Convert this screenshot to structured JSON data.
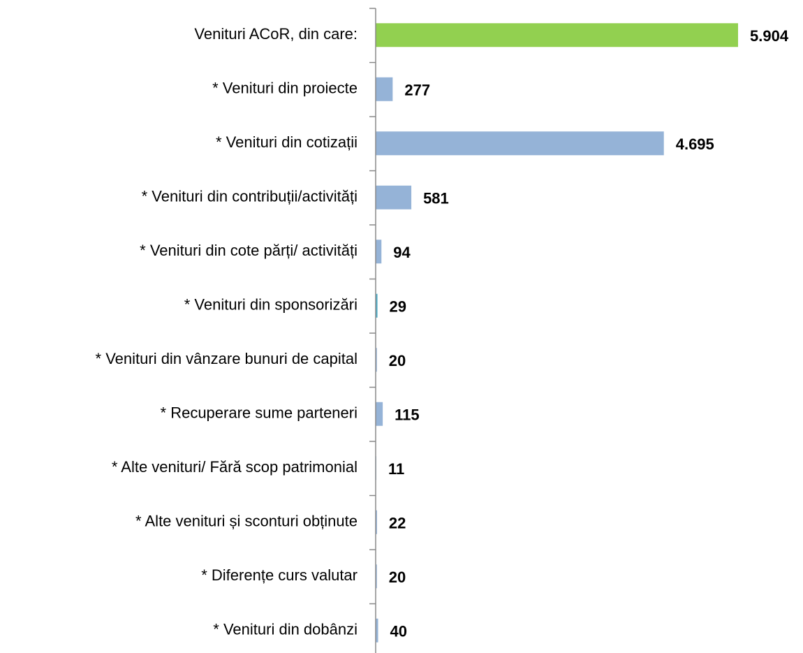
{
  "chart_data": {
    "type": "bar",
    "orientation": "horizontal",
    "categories": [
      "Venituri ACoR, din care:",
      "* Venituri din proiecte",
      "* Venituri din cotizații",
      "* Venituri din contribuții/activități",
      "* Venituri din cote părți/ activități",
      "* Venituri din sponsorizări",
      "* Venituri din vânzare bunuri de capital",
      "* Recuperare sume parteneri",
      "* Alte venituri/ Fără scop patrimonial",
      "* Alte venituri și sconturi obținute",
      "* Diferențe curs valutar",
      "* Venituri din dobânzi"
    ],
    "values": [
      5904,
      277,
      4695,
      581,
      94,
      29,
      20,
      115,
      11,
      22,
      20,
      40
    ],
    "value_labels": [
      "5.904",
      "277",
      "4.695",
      "581",
      "94",
      "29",
      "20",
      "115",
      "11",
      "22",
      "20",
      "40"
    ],
    "colors": [
      "#92d050",
      "#95b3d7",
      "#95b3d7",
      "#95b3d7",
      "#95b3d7",
      "#4bacc6",
      "#95b3d7",
      "#95b3d7",
      "#95b3d7",
      "#95b3d7",
      "#95b3d7",
      "#95b3d7"
    ],
    "xlim": [
      0,
      5904
    ]
  }
}
